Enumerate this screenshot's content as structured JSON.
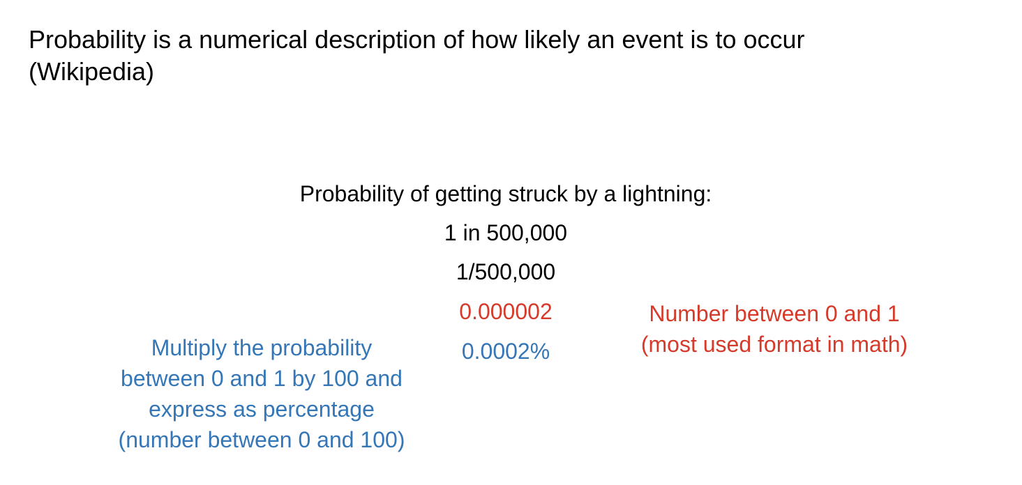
{
  "headline": {
    "line1": "Probability is a numerical description of how likely an event is to occur",
    "line2": "(Wikipedia)"
  },
  "example": {
    "title": "Probability of getting struck by a lightning:",
    "odds": "1 in 500,000",
    "fraction": "1/500,000",
    "decimal": "0.000002",
    "percent": "0.0002%"
  },
  "notes": {
    "decimal": {
      "line1": "Number between 0 and 1",
      "line2": "(most used format in math)"
    },
    "percent": {
      "line1": "Multiply the probability",
      "line2": "between 0 and 1 by 100 and",
      "line3": "express as percentage",
      "line4": "(number between 0 and 100)"
    }
  },
  "colors": {
    "decimal_accent": "#d63a2a",
    "percent_accent": "#3576b6",
    "text": "#000000",
    "background": "#ffffff"
  }
}
